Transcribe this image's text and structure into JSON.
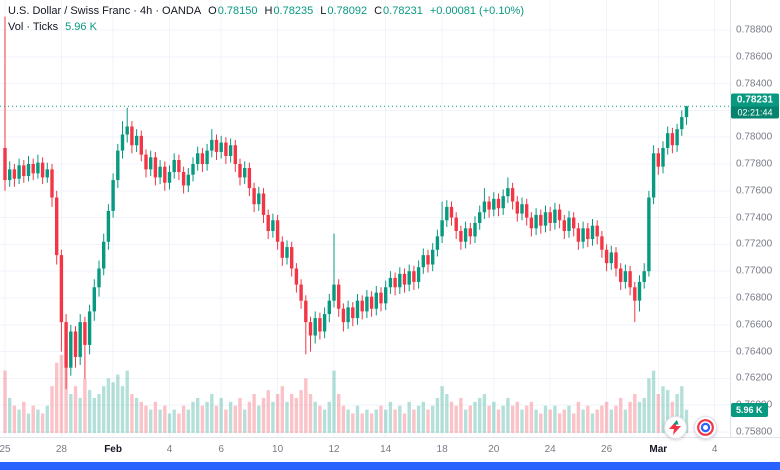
{
  "colors": {
    "up": "#089981",
    "down": "#f23645",
    "up_vol": "rgba(8,153,129,0.30)",
    "down_vol": "rgba(242,54,69,0.30)",
    "grid": "#f0f3fa",
    "axis_text": "#787b86",
    "scrollbar_blue": "#2962ff"
  },
  "legend": {
    "symbol_line": "U.S. Dollar / Swiss Franc · 4h · OANDA",
    "ohlc": [
      {
        "k": "O",
        "v": "0.78150"
      },
      {
        "k": "H",
        "v": "0.78235"
      },
      {
        "k": "L",
        "v": "0.78092"
      },
      {
        "k": "C",
        "v": "0.78231"
      }
    ],
    "change": "+0.00081 (+0.10%)",
    "volume_label": "Vol · Ticks",
    "volume_value": "5.96 K"
  },
  "price_badge": {
    "price": "0.78231",
    "countdown": "02:21:44"
  },
  "volume_badge": "5.96 K",
  "chart_data": {
    "type": "candlestick",
    "title": "U.S. Dollar / Swiss Franc, 4h, OANDA",
    "current_price": 0.78231,
    "last_volume": 5.96,
    "y_axis": {
      "min": 0.758,
      "max": 0.788,
      "labels": [
        "0.78800",
        "0.78600",
        "0.78400",
        "0.78200",
        "0.78000",
        "0.77800",
        "0.77600",
        "0.77400",
        "0.77200",
        "0.77000",
        "0.76800",
        "0.76600",
        "0.76400",
        "0.76200",
        "0.76000",
        "0.75800"
      ]
    },
    "x_axis": {
      "labels": [
        "25",
        "28",
        "Feb",
        "4",
        "6",
        "10",
        "12",
        "14",
        "18",
        "20",
        "24",
        "26",
        "Mar",
        "4"
      ],
      "tick_indices": [
        0,
        12,
        23,
        35,
        46,
        58,
        70,
        81,
        93,
        104,
        116,
        128,
        139,
        151
      ]
    },
    "candles": [
      [
        0.7792,
        0.789,
        0.776,
        0.7768
      ],
      [
        0.7768,
        0.7782,
        0.7763,
        0.7776
      ],
      [
        0.7776,
        0.778,
        0.7763,
        0.7769
      ],
      [
        0.7769,
        0.7784,
        0.7765,
        0.7779
      ],
      [
        0.7779,
        0.7783,
        0.7766,
        0.7771
      ],
      [
        0.7771,
        0.7786,
        0.7767,
        0.778
      ],
      [
        0.778,
        0.7784,
        0.7768,
        0.7773
      ],
      [
        0.7773,
        0.7787,
        0.7769,
        0.7781
      ],
      [
        0.7781,
        0.7785,
        0.7765,
        0.777
      ],
      [
        0.777,
        0.7781,
        0.7766,
        0.7776
      ],
      [
        0.7776,
        0.778,
        0.7748,
        0.7755
      ],
      [
        0.7755,
        0.776,
        0.7705,
        0.7712
      ],
      [
        0.7712,
        0.7716,
        0.764,
        0.7662
      ],
      [
        0.7662,
        0.7668,
        0.7612,
        0.7628
      ],
      [
        0.7628,
        0.766,
        0.7622,
        0.7655
      ],
      [
        0.7655,
        0.7659,
        0.7628,
        0.7636
      ],
      [
        0.7636,
        0.7668,
        0.763,
        0.7662
      ],
      [
        0.7662,
        0.7666,
        0.762,
        0.7645
      ],
      [
        0.7645,
        0.7675,
        0.7638,
        0.767
      ],
      [
        0.767,
        0.7694,
        0.7663,
        0.7688
      ],
      [
        0.7688,
        0.7708,
        0.7681,
        0.7702
      ],
      [
        0.7702,
        0.7728,
        0.7697,
        0.7722
      ],
      [
        0.7722,
        0.775,
        0.7716,
        0.7745
      ],
      [
        0.7745,
        0.7773,
        0.774,
        0.7768
      ],
      [
        0.7768,
        0.7795,
        0.7762,
        0.779
      ],
      [
        0.779,
        0.7812,
        0.7784,
        0.7802
      ],
      [
        0.7802,
        0.7822,
        0.7796,
        0.7808
      ],
      [
        0.7808,
        0.7812,
        0.7788,
        0.7794
      ],
      [
        0.7794,
        0.7806,
        0.7789,
        0.7801
      ],
      [
        0.7801,
        0.7805,
        0.7782,
        0.7787
      ],
      [
        0.7787,
        0.7791,
        0.777,
        0.7776
      ],
      [
        0.7776,
        0.779,
        0.7771,
        0.7785
      ],
      [
        0.7785,
        0.7789,
        0.7764,
        0.777
      ],
      [
        0.777,
        0.7783,
        0.7765,
        0.7778
      ],
      [
        0.7778,
        0.7782,
        0.776,
        0.7766
      ],
      [
        0.7766,
        0.7779,
        0.7761,
        0.7774
      ],
      [
        0.7774,
        0.7788,
        0.7769,
        0.7783
      ],
      [
        0.7783,
        0.7787,
        0.7768,
        0.7774
      ],
      [
        0.7774,
        0.7778,
        0.7758,
        0.7764
      ],
      [
        0.7764,
        0.7777,
        0.7759,
        0.7772
      ],
      [
        0.7772,
        0.7785,
        0.7767,
        0.778
      ],
      [
        0.778,
        0.7793,
        0.7775,
        0.7788
      ],
      [
        0.7788,
        0.7792,
        0.7774,
        0.778
      ],
      [
        0.778,
        0.7795,
        0.7775,
        0.779
      ],
      [
        0.779,
        0.7806,
        0.7785,
        0.7798
      ],
      [
        0.7798,
        0.7802,
        0.7783,
        0.7789
      ],
      [
        0.7789,
        0.7801,
        0.7784,
        0.7796
      ],
      [
        0.7796,
        0.78,
        0.778,
        0.7786
      ],
      [
        0.7786,
        0.7799,
        0.7781,
        0.7794
      ],
      [
        0.7794,
        0.7798,
        0.7774,
        0.778
      ],
      [
        0.778,
        0.7784,
        0.7764,
        0.777
      ],
      [
        0.777,
        0.7782,
        0.7765,
        0.7777
      ],
      [
        0.7777,
        0.7781,
        0.7756,
        0.7762
      ],
      [
        0.7762,
        0.7766,
        0.7744,
        0.775
      ],
      [
        0.775,
        0.7763,
        0.7745,
        0.7758
      ],
      [
        0.7758,
        0.7762,
        0.7736,
        0.7742
      ],
      [
        0.7742,
        0.7746,
        0.7724,
        0.773
      ],
      [
        0.773,
        0.7743,
        0.7725,
        0.7738
      ],
      [
        0.7738,
        0.7742,
        0.7716,
        0.7722
      ],
      [
        0.7722,
        0.7726,
        0.7704,
        0.771
      ],
      [
        0.771,
        0.7723,
        0.7705,
        0.7718
      ],
      [
        0.7718,
        0.7722,
        0.7696,
        0.7702
      ],
      [
        0.7702,
        0.7706,
        0.7684,
        0.769
      ],
      [
        0.769,
        0.7694,
        0.7672,
        0.7678
      ],
      [
        0.7678,
        0.7682,
        0.7638,
        0.7662
      ],
      [
        0.7662,
        0.7666,
        0.764,
        0.7652
      ],
      [
        0.7652,
        0.767,
        0.7646,
        0.7665
      ],
      [
        0.7665,
        0.7669,
        0.7649,
        0.7655
      ],
      [
        0.7655,
        0.7673,
        0.765,
        0.7668
      ],
      [
        0.7668,
        0.7683,
        0.7662,
        0.7678
      ],
      [
        0.7678,
        0.7728,
        0.7673,
        0.769
      ],
      [
        0.769,
        0.7694,
        0.7666,
        0.7672
      ],
      [
        0.7672,
        0.7676,
        0.7655,
        0.7662
      ],
      [
        0.7662,
        0.7678,
        0.7657,
        0.7673
      ],
      [
        0.7673,
        0.7677,
        0.7659,
        0.7665
      ],
      [
        0.7665,
        0.7683,
        0.766,
        0.7678
      ],
      [
        0.7678,
        0.7682,
        0.7664,
        0.767
      ],
      [
        0.767,
        0.7686,
        0.7665,
        0.7681
      ],
      [
        0.7681,
        0.7685,
        0.7666,
        0.7672
      ],
      [
        0.7672,
        0.7689,
        0.7667,
        0.7684
      ],
      [
        0.7684,
        0.7688,
        0.767,
        0.7676
      ],
      [
        0.7676,
        0.7693,
        0.7671,
        0.7688
      ],
      [
        0.7688,
        0.77,
        0.7683,
        0.7695
      ],
      [
        0.7695,
        0.7699,
        0.7682,
        0.7688
      ],
      [
        0.7688,
        0.7703,
        0.7683,
        0.7698
      ],
      [
        0.7698,
        0.7702,
        0.7684,
        0.769
      ],
      [
        0.769,
        0.7705,
        0.7685,
        0.77
      ],
      [
        0.77,
        0.7704,
        0.7686,
        0.7692
      ],
      [
        0.7692,
        0.7708,
        0.7687,
        0.7703
      ],
      [
        0.7703,
        0.7717,
        0.7698,
        0.7712
      ],
      [
        0.7712,
        0.7716,
        0.7699,
        0.7705
      ],
      [
        0.7705,
        0.7721,
        0.77,
        0.7716
      ],
      [
        0.7716,
        0.7731,
        0.7711,
        0.7726
      ],
      [
        0.7726,
        0.7752,
        0.7721,
        0.7738
      ],
      [
        0.7738,
        0.7753,
        0.7733,
        0.7748
      ],
      [
        0.7748,
        0.7752,
        0.7734,
        0.774
      ],
      [
        0.774,
        0.7744,
        0.7724,
        0.773
      ],
      [
        0.773,
        0.7734,
        0.7716,
        0.7722
      ],
      [
        0.7722,
        0.7737,
        0.7717,
        0.7732
      ],
      [
        0.7732,
        0.7736,
        0.772,
        0.7726
      ],
      [
        0.7726,
        0.7741,
        0.7721,
        0.7736
      ],
      [
        0.7736,
        0.7749,
        0.7731,
        0.7744
      ],
      [
        0.7744,
        0.7762,
        0.7739,
        0.7752
      ],
      [
        0.7752,
        0.7756,
        0.774,
        0.7746
      ],
      [
        0.7746,
        0.7759,
        0.7741,
        0.7754
      ],
      [
        0.7754,
        0.7758,
        0.7741,
        0.7747
      ],
      [
        0.7747,
        0.7761,
        0.7742,
        0.7756
      ],
      [
        0.7756,
        0.777,
        0.7751,
        0.7762
      ],
      [
        0.7762,
        0.7766,
        0.7746,
        0.7752
      ],
      [
        0.7752,
        0.7756,
        0.7737,
        0.7743
      ],
      [
        0.7743,
        0.7755,
        0.7738,
        0.775
      ],
      [
        0.775,
        0.7754,
        0.7734,
        0.774
      ],
      [
        0.774,
        0.7744,
        0.7726,
        0.7732
      ],
      [
        0.7732,
        0.7747,
        0.7727,
        0.7742
      ],
      [
        0.7742,
        0.7746,
        0.7728,
        0.7734
      ],
      [
        0.7734,
        0.7749,
        0.7729,
        0.7744
      ],
      [
        0.7744,
        0.7748,
        0.773,
        0.7736
      ],
      [
        0.7736,
        0.7751,
        0.7731,
        0.7746
      ],
      [
        0.7746,
        0.775,
        0.7732,
        0.7738
      ],
      [
        0.7738,
        0.7742,
        0.7724,
        0.773
      ],
      [
        0.773,
        0.7745,
        0.7725,
        0.774
      ],
      [
        0.774,
        0.7744,
        0.7726,
        0.7732
      ],
      [
        0.7732,
        0.7736,
        0.7716,
        0.7722
      ],
      [
        0.7722,
        0.7737,
        0.7717,
        0.7732
      ],
      [
        0.7732,
        0.7736,
        0.7718,
        0.7724
      ],
      [
        0.7724,
        0.7739,
        0.7719,
        0.7734
      ],
      [
        0.7734,
        0.7738,
        0.772,
        0.7726
      ],
      [
        0.7726,
        0.773,
        0.771,
        0.7716
      ],
      [
        0.7716,
        0.772,
        0.77,
        0.7706
      ],
      [
        0.7706,
        0.7719,
        0.7701,
        0.7714
      ],
      [
        0.7714,
        0.7718,
        0.7696,
        0.7702
      ],
      [
        0.7702,
        0.7706,
        0.7686,
        0.7692
      ],
      [
        0.7692,
        0.7705,
        0.7687,
        0.77
      ],
      [
        0.77,
        0.7704,
        0.7682,
        0.7688
      ],
      [
        0.7688,
        0.7692,
        0.7662,
        0.7678
      ],
      [
        0.7678,
        0.7697,
        0.767,
        0.7692
      ],
      [
        0.7692,
        0.7706,
        0.7687,
        0.77
      ],
      [
        0.77,
        0.776,
        0.7696,
        0.7755
      ],
      [
        0.7755,
        0.7794,
        0.775,
        0.7788
      ],
      [
        0.7788,
        0.7792,
        0.7772,
        0.7778
      ],
      [
        0.7778,
        0.7797,
        0.7773,
        0.7792
      ],
      [
        0.7792,
        0.7808,
        0.7787,
        0.7803
      ],
      [
        0.7803,
        0.7807,
        0.7788,
        0.7794
      ],
      [
        0.7794,
        0.781,
        0.7789,
        0.7806
      ],
      [
        0.7806,
        0.782,
        0.7801,
        0.7815
      ],
      [
        0.7815,
        0.78235,
        0.78092,
        0.78231
      ]
    ],
    "volumes": [
      16,
      9,
      7,
      6,
      8,
      5,
      7,
      6,
      5,
      7,
      12,
      18,
      20,
      17,
      10,
      12,
      9,
      14,
      11,
      9,
      10,
      12,
      14,
      13,
      15,
      12,
      16,
      10,
      9,
      8,
      7,
      6,
      8,
      6,
      7,
      5,
      6,
      5,
      7,
      6,
      8,
      9,
      7,
      8,
      10,
      7,
      9,
      6,
      8,
      7,
      9,
      6,
      8,
      10,
      7,
      9,
      11,
      8,
      10,
      12,
      8,
      10,
      9,
      11,
      14,
      10,
      8,
      7,
      6,
      8,
      16,
      10,
      7,
      6,
      5,
      7,
      5,
      6,
      5,
      6,
      7,
      6,
      8,
      6,
      7,
      5,
      8,
      6,
      7,
      8,
      6,
      7,
      9,
      12,
      10,
      8,
      7,
      9,
      6,
      7,
      8,
      9,
      10,
      7,
      8,
      6,
      7,
      9,
      7,
      8,
      6,
      7,
      8,
      6,
      5,
      7,
      6,
      7,
      5,
      6,
      7,
      5,
      8,
      6,
      7,
      5,
      6,
      7,
      8,
      6,
      7,
      9,
      6,
      8,
      10,
      8,
      9,
      14,
      16,
      10,
      12,
      11,
      8,
      10,
      12,
      5.96
    ]
  }
}
